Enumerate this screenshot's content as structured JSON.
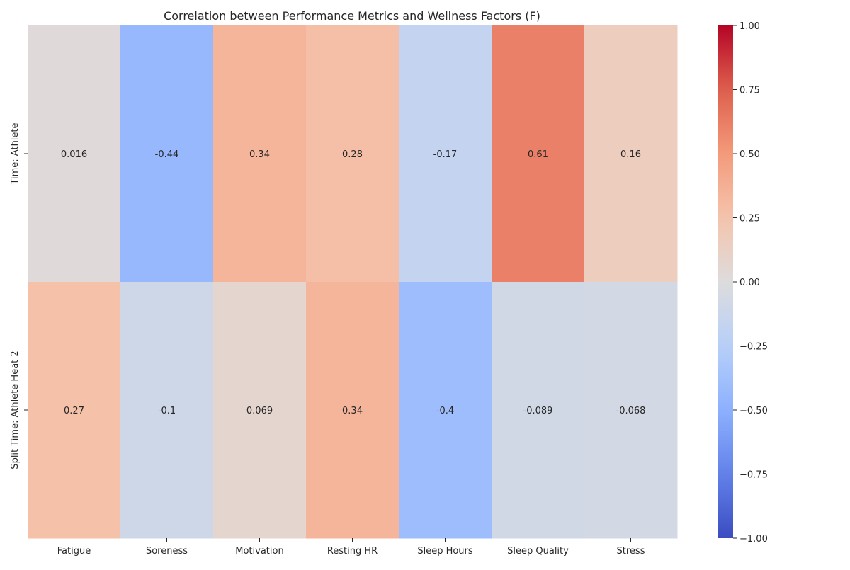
{
  "chart_data": {
    "type": "heatmap",
    "title": "Correlation between Performance Metrics and Wellness Factors (F)",
    "xlabel": "",
    "ylabel": "",
    "x_categories": [
      "Fatigue",
      "Soreness",
      "Motivation",
      "Resting HR",
      "Sleep Hours",
      "Sleep Quality",
      "Stress"
    ],
    "y_categories": [
      "Time: Athlete",
      "Split Time: Athlete Heat 2"
    ],
    "values": [
      [
        0.016,
        -0.44,
        0.34,
        0.28,
        -0.17,
        0.61,
        0.16
      ],
      [
        0.27,
        -0.1,
        0.069,
        0.34,
        -0.4,
        -0.089,
        -0.068
      ]
    ],
    "cell_labels": [
      [
        "0.016",
        "-0.44",
        "0.34",
        "0.28",
        "-0.17",
        "0.61",
        "0.16"
      ],
      [
        "0.27",
        "-0.1",
        "0.069",
        "0.34",
        "-0.4",
        "-0.089",
        "-0.068"
      ]
    ],
    "colormap": "coolwarm",
    "color_range": [
      -1,
      1
    ],
    "colorbar_ticks": [
      1.0,
      0.75,
      0.5,
      0.25,
      0.0,
      -0.25,
      -0.5,
      -0.75,
      -1.0
    ],
    "colorbar_tick_labels": [
      "1.00",
      "0.75",
      "0.50",
      "0.25",
      "0.00",
      "−0.25",
      "−0.50",
      "−0.75",
      "−1.00"
    ]
  }
}
